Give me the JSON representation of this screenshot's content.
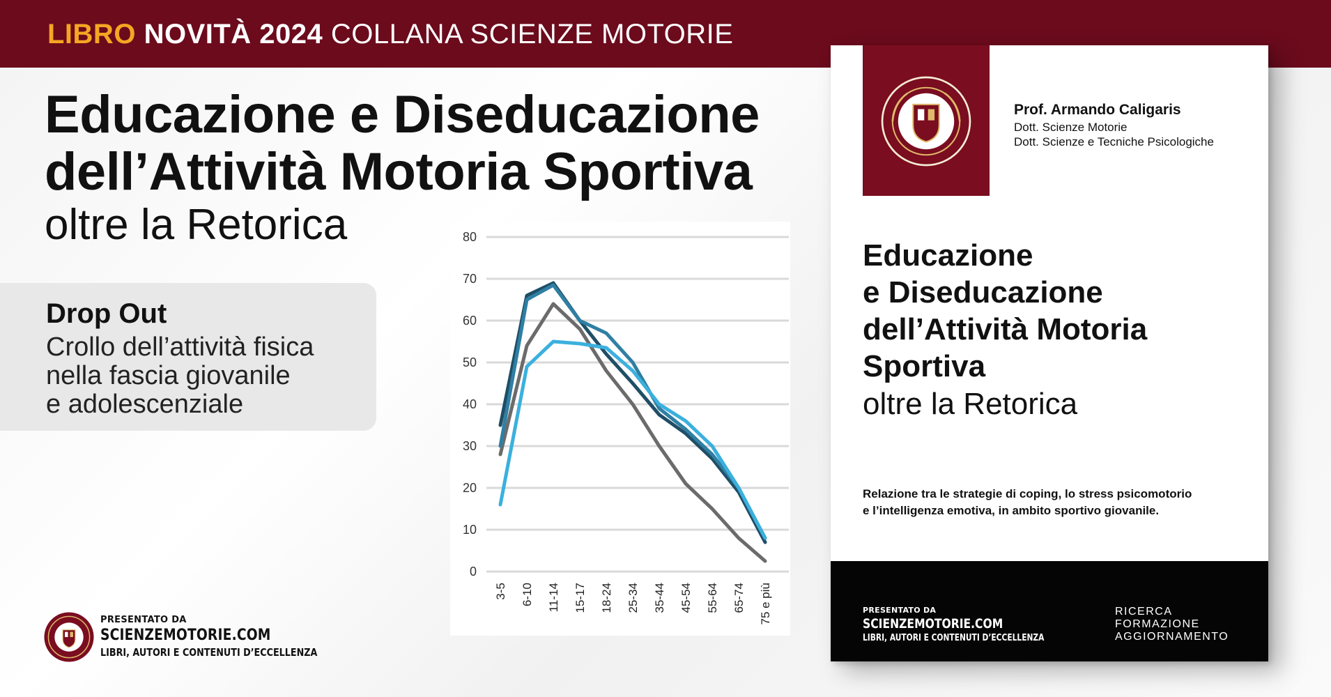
{
  "banner": {
    "libro": "LIBRO",
    "novita": "NOVITÀ 2024",
    "collana": "COLLANA SCIENZE MOTORIE"
  },
  "headline": {
    "title_line1": "Educazione e Diseducazione",
    "title_line2": "dell’Attività Motoria Sportiva",
    "subtitle": "oltre la Retorica"
  },
  "dropout": {
    "title": "Drop Out",
    "lines": [
      "Crollo dell’attività fisica",
      "nella fascia giovanile",
      "e adolescenziale"
    ]
  },
  "footer": {
    "presented_by": "PRESENTATO DA",
    "site": "SCIENZEMOTORIE.COM",
    "tagline": "LIBRI, AUTORI E CONTENUTI D’ECCELLENZA"
  },
  "book": {
    "author_name": "Prof. Armando Caligaris",
    "author_degrees": [
      "Dott. Scienze Motorie",
      "Dott. Scienze e Tecniche Psicologiche"
    ],
    "title_lines": [
      "Educazione",
      "e Diseducazione",
      "dell’Attività Motoria",
      "Sportiva"
    ],
    "subtitle": "oltre la Retorica",
    "description_lines": [
      "Relazione tra le strategie di coping, lo stress psicomotorio",
      "e l’intelligenza emotiva, in ambito sportivo giovanile."
    ],
    "footer_presented_by": "PRESENTATO DA",
    "footer_site": "SCIENZEMOTORIE.COM",
    "footer_tagline": "LIBRI, AUTORI E CONTENUTI D’ECCELLENZA",
    "footer_right": [
      "RICERCA",
      "FORMAZIONE",
      "AGGIORNAMENTO"
    ]
  },
  "chart_data": {
    "type": "line",
    "categories": [
      "3-5",
      "6-10",
      "11-14",
      "15-17",
      "18-24",
      "25-34",
      "35-44",
      "45-54",
      "55-64",
      "65-74",
      "75 e più"
    ],
    "ylim": [
      0,
      80
    ],
    "yticks": [
      0,
      10,
      20,
      30,
      40,
      50,
      60,
      70,
      80
    ],
    "grid": true,
    "series": [
      {
        "color": "#6b6b6b",
        "values": [
          28,
          54,
          64,
          58,
          48,
          40,
          30,
          21,
          15,
          8,
          2.5
        ]
      },
      {
        "color": "#1f4e66",
        "values": [
          35,
          66,
          69,
          60,
          52,
          45,
          37.5,
          33,
          27,
          19,
          7
        ]
      },
      {
        "color": "#2f7fa3",
        "values": [
          30,
          65,
          68.5,
          60,
          57,
          50,
          39,
          34,
          28,
          20,
          8
        ]
      },
      {
        "color": "#3bb0de",
        "values": [
          16,
          49,
          55,
          54.5,
          53.5,
          48,
          40,
          36,
          30,
          20,
          8
        ]
      }
    ]
  },
  "colors": {
    "banner_bg": "#6b0b1c",
    "accent_orange": "#f5a623",
    "seal_bg": "#7a0d20"
  }
}
